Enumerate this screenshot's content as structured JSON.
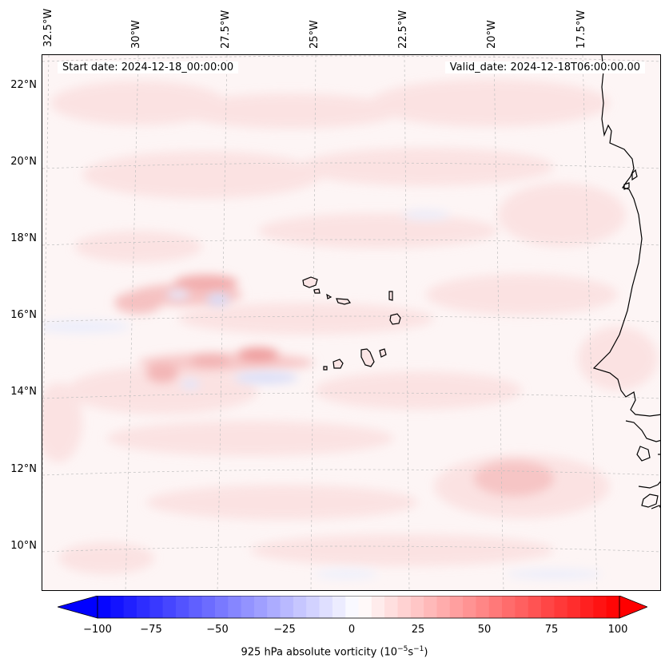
{
  "map": {
    "start_date": "Start date: 2024-12-18_00:00:00",
    "valid_date": "Valid_date: 2024-12-18T06:00:00.00",
    "longitude_labels": [
      "32.5°W",
      "30°W",
      "27.5°W",
      "25°W",
      "22.5°W",
      "20°W",
      "17.5°W"
    ],
    "latitude_labels": [
      "22°N",
      "20°N",
      "18°N",
      "16°N",
      "14°N",
      "12°N",
      "10°N"
    ],
    "field": "925 hPa absolute vorticity",
    "colors": {
      "negative_max": "#0000ff",
      "positive_max": "#ff0000",
      "neutral": "#ffffff",
      "coastline": "#000000",
      "gridline": "#b0b0b0"
    }
  },
  "colorbar": {
    "ticks": [
      "−100",
      "−75",
      "−50",
      "−25",
      "0",
      "25",
      "50",
      "75",
      "100"
    ],
    "label_prefix": "925 hPa absolute vorticity (10",
    "label_exp1": "−5",
    "label_mid": "s",
    "label_exp2": "−1",
    "label_suffix": ")",
    "min": -100,
    "max": 100,
    "levels": 40
  }
}
